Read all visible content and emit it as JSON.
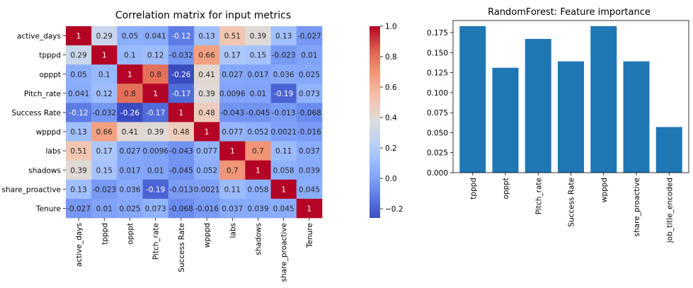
{
  "chart_data": [
    {
      "type": "heatmap",
      "title": "Correlation matrix for input metrics",
      "xlabel": "",
      "ylabel": "",
      "labels": [
        "active_days",
        "tpppd",
        "opppt",
        "Pitch_rate",
        "Success Rate",
        "wpppd",
        "labs",
        "shadows",
        "share_proactive",
        "Tenure"
      ],
      "matrix": [
        [
          1,
          0.29,
          0.05,
          0.041,
          -0.12,
          0.13,
          0.51,
          0.39,
          0.13,
          -0.027
        ],
        [
          0.29,
          1,
          0.1,
          0.12,
          -0.032,
          0.66,
          0.17,
          0.15,
          -0.023,
          0.01
        ],
        [
          0.05,
          0.1,
          1,
          0.8,
          -0.26,
          0.41,
          0.027,
          0.017,
          0.036,
          0.025
        ],
        [
          0.041,
          0.12,
          0.8,
          1,
          -0.17,
          0.39,
          0.0096,
          0.01,
          -0.19,
          0.073
        ],
        [
          -0.12,
          -0.032,
          -0.26,
          -0.17,
          1,
          0.48,
          -0.043,
          -0.045,
          -0.013,
          -0.068
        ],
        [
          0.13,
          0.66,
          0.41,
          0.39,
          0.48,
          1,
          0.077,
          0.052,
          0.0021,
          -0.016
        ],
        [
          0.51,
          0.17,
          0.027,
          0.0096,
          -0.043,
          0.077,
          1,
          0.7,
          0.11,
          0.037
        ],
        [
          0.39,
          0.15,
          0.017,
          0.01,
          -0.045,
          0.052,
          0.7,
          1,
          0.058,
          0.039
        ],
        [
          0.13,
          -0.023,
          0.036,
          -0.19,
          -0.013,
          0.0021,
          0.11,
          0.058,
          1,
          0.045
        ],
        [
          -0.027,
          0.01,
          0.025,
          0.073,
          -0.068,
          -0.016,
          0.037,
          0.039,
          0.045,
          1
        ]
      ],
      "colormap": "coolwarm",
      "color_range": [
        -0.26,
        1
      ],
      "colorbar_ticks": [
        1.0,
        0.8,
        0.6,
        0.4,
        0.2,
        0.0,
        -0.2
      ],
      "colorbar_tick_labels": [
        "1.0",
        "0.8",
        "0.6",
        "0.4",
        "0.2",
        "0.0",
        "−0.2"
      ]
    },
    {
      "type": "bar",
      "title": "RandomForest: Feature importance",
      "xlabel": "",
      "ylabel": "",
      "categories": [
        "tpppd",
        "opppt",
        "Pitch_rate",
        "Success Rate",
        "wpppd",
        "share_proactive",
        "job_title_encoded"
      ],
      "values": [
        0.183,
        0.131,
        0.167,
        0.139,
        0.183,
        0.139,
        0.057
      ],
      "ylim": [
        0,
        0.19
      ],
      "yticks": [
        0.0,
        0.025,
        0.05,
        0.075,
        0.1,
        0.125,
        0.15,
        0.175
      ],
      "ytick_labels": [
        "0.000",
        "0.025",
        "0.050",
        "0.075",
        "0.100",
        "0.125",
        "0.150",
        "0.175"
      ],
      "bar_color": "#1f77b4",
      "grid": false
    }
  ]
}
